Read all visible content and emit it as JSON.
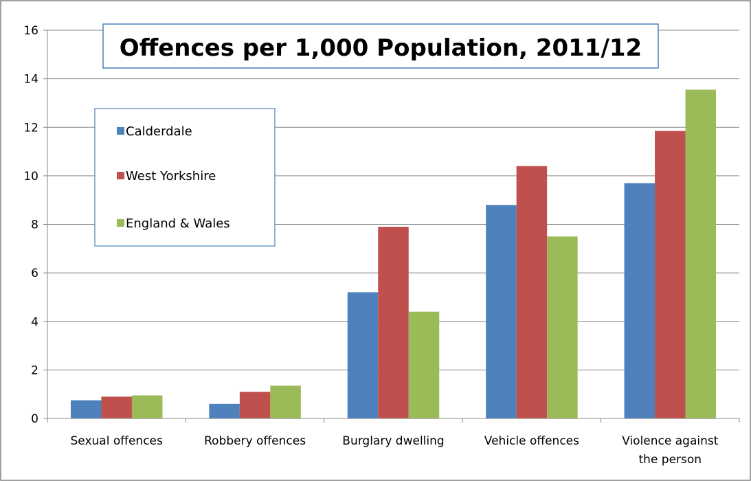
{
  "chart_data": {
    "type": "bar",
    "title": "Offences per 1,000 Population, 2011/12",
    "xlabel": "",
    "ylabel": "",
    "ylim": [
      0,
      16
    ],
    "yticks": [
      0,
      2,
      4,
      6,
      8,
      10,
      12,
      14,
      16
    ],
    "grid": true,
    "legend_position": "left",
    "categories": [
      [
        "Sexual offences"
      ],
      [
        "Robbery offences"
      ],
      [
        "Burglary dwelling"
      ],
      [
        "Vehicle offences"
      ],
      [
        "Violence against",
        "the person"
      ]
    ],
    "series": [
      {
        "name": "Calderdale",
        "color": "#4f81bd",
        "values": [
          0.75,
          0.6,
          5.2,
          8.8,
          9.7
        ]
      },
      {
        "name": "West Yorkshire",
        "color": "#c0504d",
        "values": [
          0.9,
          1.1,
          7.9,
          10.4,
          11.85
        ]
      },
      {
        "name": "England & Wales",
        "color": "#9bbb59",
        "values": [
          0.95,
          1.35,
          4.4,
          7.5,
          13.55
        ]
      }
    ]
  }
}
